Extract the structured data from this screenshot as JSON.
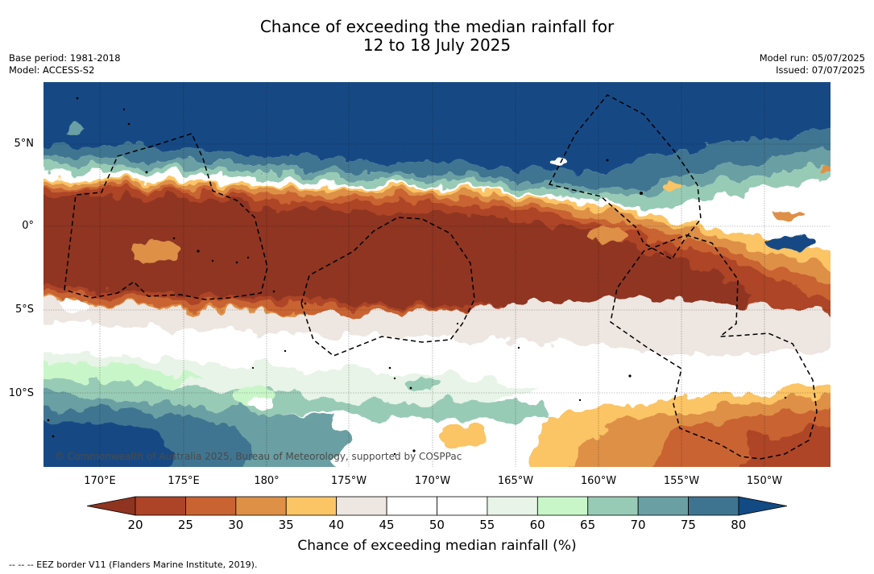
{
  "title": {
    "line1": "Chance of exceeding the median rainfall for",
    "line2": "12 to 18 July 2025"
  },
  "meta": {
    "base_period": "Base period: 1981-2018",
    "model": "Model: ACCESS-S2",
    "model_run": "Model run: 05/07/2025",
    "issued": "Issued: 07/07/2025"
  },
  "map": {
    "region": "Tropical Pacific",
    "lat_ticks": [
      "5°N",
      "0°",
      "5°S",
      "10°S"
    ],
    "lon_ticks": [
      "170°E",
      "175°E",
      "180°",
      "175°W",
      "170°W",
      "165°W",
      "160°W",
      "155°W",
      "150°W"
    ],
    "copyright": "© Commonwealth of Australia 2025, Bureau of Meteorology, supported by COSPPac",
    "eez_note": "-- -- -- EEZ border V11 (Flanders Marine Institute, 2019)."
  },
  "colorbar": {
    "title": "Chance of exceeding median rainfall (%)",
    "ticks": [
      "20",
      "25",
      "30",
      "35",
      "40",
      "45",
      "50",
      "55",
      "60",
      "65",
      "70",
      "75",
      "80"
    ],
    "low_color": "#8f3421",
    "high_color": "#124a84",
    "colors": [
      "#ad4427",
      "#c96331",
      "#de9046",
      "#fbc465",
      "#ede6e1",
      "#ffffff",
      "#ffffff",
      "#e8f4e8",
      "#c9f6c9",
      "#98cbb5",
      "#6aa0a3",
      "#3f7491"
    ]
  }
}
